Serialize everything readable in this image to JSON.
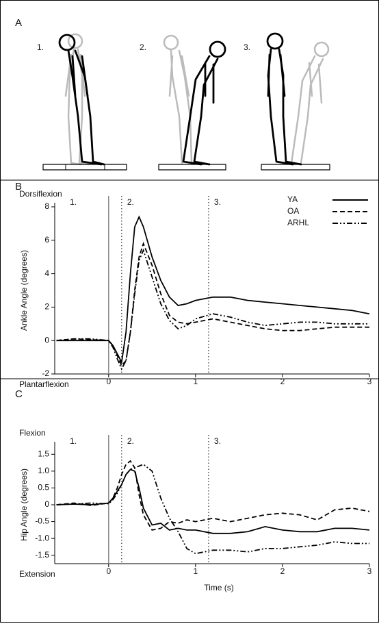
{
  "diagram": {
    "label": "A",
    "phases": [
      "1.",
      "2.",
      "3."
    ]
  },
  "chart_data": [
    {
      "type": "line",
      "panel": "B",
      "y_label": "Ankle Angle (degrees)",
      "y_top_label": "Dorsiflexion",
      "y_bottom_label": "Plantarflexion",
      "phase_labels": [
        "1.",
        "2.",
        "3."
      ],
      "onset": 0,
      "phase_lines": [
        0.15,
        1.15
      ],
      "x": [
        -0.6,
        -0.4,
        -0.2,
        0,
        0.05,
        0.1,
        0.15,
        0.2,
        0.25,
        0.3,
        0.35,
        0.4,
        0.5,
        0.6,
        0.7,
        0.8,
        0.9,
        1.0,
        1.2,
        1.4,
        1.6,
        1.8,
        2.0,
        2.2,
        2.4,
        2.6,
        2.8,
        3.0
      ],
      "series": [
        {
          "name": "YA",
          "color": "#000000",
          "dash": "solid",
          "values": [
            0,
            0,
            0,
            0,
            -0.3,
            -0.8,
            -1.3,
            0.5,
            4,
            6.8,
            7.4,
            6.8,
            5,
            3.6,
            2.6,
            2.1,
            2.2,
            2.4,
            2.6,
            2.6,
            2.4,
            2.3,
            2.2,
            2.1,
            2.0,
            1.9,
            1.8,
            1.6
          ]
        },
        {
          "name": "OA",
          "color": "#000000",
          "dash": "dashed",
          "values": [
            0,
            0.1,
            0.05,
            0,
            -0.3,
            -0.9,
            -1.5,
            -1.2,
            0.5,
            3,
            5,
            5.8,
            4.5,
            2.8,
            1.5,
            1.1,
            1.0,
            1.1,
            1.3,
            1.1,
            0.9,
            0.7,
            0.6,
            0.6,
            0.7,
            0.8,
            0.8,
            0.8
          ]
        },
        {
          "name": "ARHL",
          "color": "#000000",
          "dash": "dashdotdot",
          "values": [
            0,
            0.1,
            0.1,
            0,
            -0.4,
            -1.1,
            -1.7,
            -1.2,
            0.5,
            2.8,
            4.8,
            5.4,
            3.8,
            2.2,
            1.2,
            0.7,
            0.9,
            1.3,
            1.6,
            1.4,
            1.1,
            0.9,
            1.0,
            1.1,
            1.1,
            1.0,
            1.0,
            1.0
          ]
        }
      ],
      "xlim": [
        -0.62,
        3
      ],
      "xticks": [
        0,
        1,
        2,
        3
      ],
      "ylim": [
        -2,
        8
      ],
      "yticks": [
        -2,
        0,
        2,
        4,
        6,
        8
      ],
      "legend": "top-right"
    },
    {
      "type": "line",
      "panel": "C",
      "y_label": "Hip Angle (degrees)",
      "y_top_label": "Flexion",
      "y_bottom_label": "Extension",
      "x_label": "Time (s)",
      "phase_labels": [
        "1.",
        "2.",
        "3."
      ],
      "onset": 0,
      "phase_lines": [
        0.15,
        1.15
      ],
      "x": [
        -0.6,
        -0.4,
        -0.2,
        0,
        0.05,
        0.1,
        0.15,
        0.2,
        0.25,
        0.3,
        0.35,
        0.4,
        0.5,
        0.6,
        0.7,
        0.8,
        0.9,
        1.0,
        1.2,
        1.4,
        1.6,
        1.8,
        2.0,
        2.2,
        2.4,
        2.6,
        2.8,
        3.0
      ],
      "series": [
        {
          "name": "YA",
          "color": "#000000",
          "dash": "solid",
          "values": [
            0,
            0.02,
            0,
            0.05,
            0.2,
            0.4,
            0.6,
            0.9,
            1.05,
            1.0,
            0.5,
            -0.1,
            -0.6,
            -0.55,
            -0.75,
            -0.7,
            -0.75,
            -0.75,
            -0.85,
            -0.85,
            -0.8,
            -0.65,
            -0.75,
            -0.8,
            -0.8,
            -0.7,
            -0.7,
            -0.75
          ]
        },
        {
          "name": "OA",
          "color": "#000000",
          "dash": "dashed",
          "values": [
            0,
            0.05,
            -0.02,
            0.05,
            0.2,
            0.5,
            0.9,
            1.2,
            1.3,
            1.1,
            0.3,
            -0.3,
            -0.75,
            -0.7,
            -0.5,
            -0.55,
            -0.45,
            -0.5,
            -0.4,
            -0.5,
            -0.4,
            -0.3,
            -0.25,
            -0.3,
            -0.45,
            -0.15,
            -0.1,
            -0.2
          ]
        },
        {
          "name": "ARHL",
          "color": "#000000",
          "dash": "dashdotdot",
          "values": [
            0,
            0.02,
            0.05,
            0.03,
            0.15,
            0.35,
            0.6,
            0.9,
            1.05,
            1.1,
            1.15,
            1.2,
            1.0,
            0.2,
            -0.4,
            -0.8,
            -1.3,
            -1.45,
            -1.35,
            -1.35,
            -1.4,
            -1.3,
            -1.3,
            -1.25,
            -1.2,
            -1.1,
            -1.15,
            -1.15
          ]
        }
      ],
      "xlim": [
        -0.62,
        3
      ],
      "xticks": [
        0,
        1,
        2,
        3
      ],
      "ylim": [
        -1.75,
        1.75
      ],
      "yticks": [
        -1.5,
        {
          "value": -1,
          "label": "-1.0"
        },
        -0.5,
        0,
        0.5,
        {
          "value": 1,
          "label": "1.0"
        },
        1.5
      ]
    }
  ]
}
